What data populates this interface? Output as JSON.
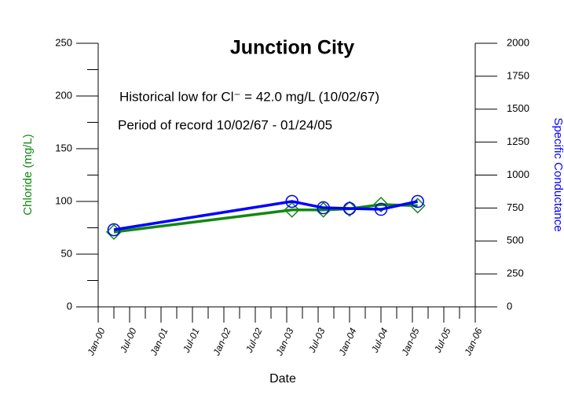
{
  "chart_data": {
    "type": "line",
    "title": "Junction City",
    "annotations": [
      "Historical low for Cl⁻ = 42.0 mg/L (10/02/67)",
      "Period of record 10/02/67 - 01/24/05"
    ],
    "xlabel": "Date",
    "ylabel": "Chloride (mg/L)",
    "y2label": "Specific Conductance",
    "x": [
      "Apr-00",
      "Feb-03",
      "Aug-03",
      "Jan-04",
      "Jul-04",
      "Feb-05"
    ],
    "xlim": [
      "Jan-00",
      "Jan-06"
    ],
    "xticks": [
      "Jan-00",
      "Jul-00",
      "Jan-01",
      "Jul-01",
      "Jan-02",
      "Jul-02",
      "Jan-03",
      "Jul-03",
      "Jan-04",
      "Jul-04",
      "Jan-05",
      "Jul-05",
      "Jan-06"
    ],
    "ylim": [
      0,
      250
    ],
    "yticks": [
      0,
      50,
      100,
      150,
      200,
      250
    ],
    "y2lim": [
      0,
      2000
    ],
    "y2ticks": [
      0,
      250,
      500,
      750,
      1000,
      1250,
      1500,
      1750,
      2000
    ],
    "series": [
      {
        "name": "Chloride",
        "color": "#118811",
        "marker": "diamond",
        "values": [
          71,
          92,
          92,
          93,
          97,
          96
        ]
      },
      {
        "name": "Specific Conductance",
        "color": "#0000ff",
        "marker": "circle",
        "axis": "y2",
        "values": [
          585,
          800,
          752,
          746,
          740,
          800
        ]
      }
    ]
  }
}
